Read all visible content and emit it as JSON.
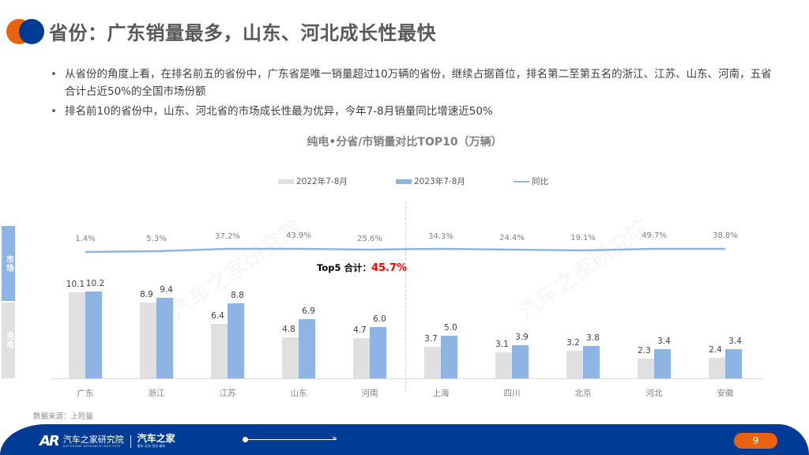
{
  "header": {
    "title": "省份：广东销量最多，山东、河北成长性最快"
  },
  "bullets": [
    "从省份的角度上看，在排名前五的省份中，广东省是唯一销量超过10万辆的省份，继续占据首位，排名第二至第五名的浙江、江苏、山东、河南，五省合计占近50%的全国市场份额",
    "排名前10的省份中，山东、河北省的市场成长性最为优异，今年7-8月销量同比增速近50%"
  ],
  "side_tags": {
    "market": "市场",
    "charge": "充电"
  },
  "annotation": {
    "top5_label": "Top5 合计：",
    "top5_value": "45.7%"
  },
  "source": "数据来源：上险量",
  "footer": {
    "ar_mark": "AR",
    "org_cn": "汽车之家研究院",
    "org_en": "AUTOHOME RESEARCH INSTITUTE",
    "brand_cn": "汽车之家",
    "brand_sub": "看车·买车·用车·换车",
    "arrow": "»",
    "page_number": "9"
  },
  "watermark": "汽车之家研究院",
  "colors": {
    "bar_2022": "#E0E0E0",
    "bar_2023": "#8EB4E3",
    "line_yoy": "#8EB4E3",
    "accent_orange": "#E8620F",
    "brand_blue": "#003C96",
    "highlight_red": "#FF0000"
  },
  "chart_data": {
    "type": "bar",
    "title": "纯电•分省/市销量对比TOP10（万辆）",
    "xlabel": "",
    "ylabel": "",
    "categories": [
      "广东",
      "浙江",
      "江苏",
      "山东",
      "河南",
      "上海",
      "四川",
      "北京",
      "河北",
      "安徽"
    ],
    "series": [
      {
        "name": "2022年7-8月",
        "type": "bar",
        "values": [
          10.1,
          8.9,
          6.4,
          4.8,
          4.7,
          3.7,
          3.1,
          3.2,
          2.3,
          2.4
        ]
      },
      {
        "name": "2023年7-8月",
        "type": "bar",
        "values": [
          10.2,
          9.4,
          8.8,
          6.9,
          6.0,
          5.0,
          3.9,
          3.8,
          3.4,
          3.4
        ]
      },
      {
        "name": "同比",
        "type": "line",
        "values": [
          "1.4%",
          "5.3%",
          "37.2%",
          "43.9%",
          "25.6%",
          "34.3%",
          "24.4%",
          "19.1%",
          "49.7%",
          "38.8%"
        ]
      }
    ],
    "value_labels_2022": [
      "10.1",
      "8.9",
      "6.4",
      "4.8",
      "4.7",
      "3.7",
      "3.1",
      "3.2",
      "2.3",
      "2.4"
    ],
    "value_labels_2023": [
      "10.2",
      "9.4",
      "8.8",
      "6.9",
      "6.0",
      "5.0",
      "3.9",
      "3.8",
      "3.4",
      "3.4"
    ],
    "legend": [
      "2022年7-8月",
      "2023年7-8月",
      "同比"
    ],
    "legend_position": "top",
    "grid": false,
    "annotations": [
      "Top5 合计：45.7%"
    ]
  }
}
